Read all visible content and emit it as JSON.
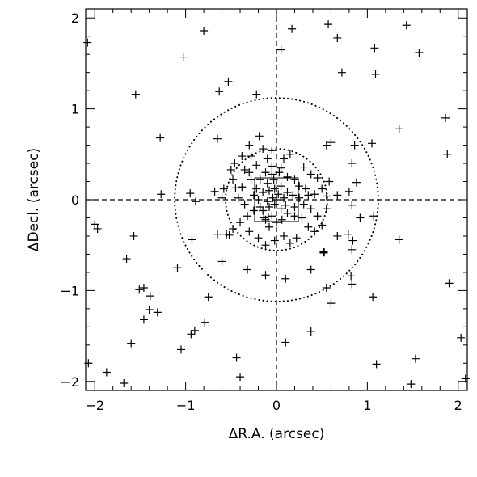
{
  "chart_data": {
    "type": "scatter",
    "title": "",
    "xlabel": "ΔR.A. (arcsec)",
    "ylabel": "ΔDecl. (arcsec)",
    "xlim": [
      -2.1,
      2.1
    ],
    "ylim": [
      -2.1,
      2.1
    ],
    "x_ticks": [
      -2,
      -1,
      0,
      1,
      2
    ],
    "y_ticks": [
      -2,
      -1,
      0,
      1,
      2
    ],
    "x_tick_labels": [
      "−2",
      "−1",
      "0",
      "1",
      "2"
    ],
    "y_tick_labels": [
      "−2",
      "−1",
      "0",
      "1",
      "2"
    ],
    "grid": false,
    "marker": "plus",
    "reference_lines": {
      "x": 0,
      "y": 0,
      "style": "dashed"
    },
    "circles": [
      {
        "center": [
          0,
          0
        ],
        "radius": 1.12,
        "style": "dotted"
      },
      {
        "center": [
          0,
          0
        ],
        "radius": 0.56,
        "style": "dotted"
      }
    ],
    "box": {
      "x": [
        -0.24,
        0.24
      ],
      "y": [
        -0.24,
        0.24
      ]
    },
    "highlight_point": [
      0.52,
      -0.58
    ],
    "colors": {
      "ink": "#000000",
      "background": "#ffffff"
    },
    "points": [
      [
        -2.08,
        1.73
      ],
      [
        -0.8,
        1.86
      ],
      [
        -1.02,
        1.57
      ],
      [
        0.05,
        1.65
      ],
      [
        0.17,
        1.88
      ],
      [
        0.57,
        1.93
      ],
      [
        0.67,
        1.78
      ],
      [
        1.08,
        1.67
      ],
      [
        1.43,
        1.92
      ],
      [
        1.57,
        1.62
      ],
      [
        0.72,
        1.4
      ],
      [
        1.09,
        1.38
      ],
      [
        -0.53,
        1.3
      ],
      [
        -0.63,
        1.19
      ],
      [
        -1.55,
        1.16
      ],
      [
        -0.22,
        1.16
      ],
      [
        1.86,
        0.9
      ],
      [
        1.35,
        0.78
      ],
      [
        1.88,
        0.5
      ],
      [
        1.05,
        0.62
      ],
      [
        0.83,
        0.4
      ],
      [
        0.86,
        0.6
      ],
      [
        -1.28,
        0.68
      ],
      [
        -0.65,
        0.67
      ],
      [
        -0.19,
        0.7
      ],
      [
        -0.3,
        0.6
      ],
      [
        0.55,
        0.6
      ],
      [
        0.6,
        0.63
      ],
      [
        -1.27,
        0.06
      ],
      [
        -0.95,
        0.07
      ],
      [
        -0.6,
        0.02
      ],
      [
        -0.68,
        0.09
      ],
      [
        -0.89,
        -0.02
      ],
      [
        0.55,
        0.04
      ],
      [
        0.67,
        0.05
      ],
      [
        0.8,
        0.09
      ],
      [
        0.83,
        -0.06
      ],
      [
        0.88,
        0.19
      ],
      [
        1.07,
        -0.18
      ],
      [
        0.92,
        -0.2
      ],
      [
        -2.0,
        -0.27
      ],
      [
        -1.97,
        -0.32
      ],
      [
        -1.57,
        -0.4
      ],
      [
        -0.93,
        -0.44
      ],
      [
        -0.65,
        -0.38
      ],
      [
        -0.52,
        -0.39
      ],
      [
        0.67,
        -0.4
      ],
      [
        0.79,
        -0.38
      ],
      [
        0.84,
        -0.45
      ],
      [
        0.83,
        -0.55
      ],
      [
        1.35,
        -0.44
      ],
      [
        -1.09,
        -0.75
      ],
      [
        -0.6,
        -0.68
      ],
      [
        -0.32,
        -0.77
      ],
      [
        -0.12,
        -0.83
      ],
      [
        0.38,
        -0.77
      ],
      [
        0.1,
        -0.87
      ],
      [
        0.82,
        -0.84
      ],
      [
        0.83,
        -0.93
      ],
      [
        0.52,
        -0.58
      ],
      [
        -1.65,
        -0.65
      ],
      [
        -1.51,
        -0.99
      ],
      [
        -1.46,
        -0.97
      ],
      [
        -1.39,
        -1.06
      ],
      [
        -1.31,
        -1.24
      ],
      [
        -1.4,
        -1.21
      ],
      [
        -1.46,
        -1.32
      ],
      [
        -0.75,
        -1.07
      ],
      [
        0.55,
        -0.97
      ],
      [
        0.6,
        -1.14
      ],
      [
        1.06,
        -1.07
      ],
      [
        1.9,
        -0.92
      ],
      [
        -1.05,
        -1.65
      ],
      [
        -0.94,
        -1.48
      ],
      [
        -0.9,
        -1.44
      ],
      [
        -0.79,
        -1.35
      ],
      [
        -0.44,
        -1.74
      ],
      [
        -0.4,
        -1.95
      ],
      [
        0.1,
        -1.57
      ],
      [
        0.38,
        -1.45
      ],
      [
        1.1,
        -1.81
      ],
      [
        1.53,
        -1.75
      ],
      [
        -2.07,
        -1.8
      ],
      [
        -1.87,
        -1.9
      ],
      [
        -1.68,
        -2.02
      ],
      [
        -1.6,
        -1.58
      ],
      [
        1.48,
        -2.03
      ],
      [
        2.03,
        -1.52
      ],
      [
        2.08,
        -1.97
      ],
      [
        -0.15,
        0.56
      ],
      [
        -0.05,
        0.54
      ],
      [
        -0.38,
        0.48
      ],
      [
        -0.46,
        0.4
      ],
      [
        -0.35,
        0.33
      ],
      [
        -0.28,
        0.22
      ],
      [
        -0.38,
        0.14
      ],
      [
        -0.48,
        0.22
      ],
      [
        -0.5,
        0.33
      ],
      [
        -0.45,
        0.13
      ],
      [
        -0.3,
        0.3
      ],
      [
        -0.28,
        0.48
      ],
      [
        -0.22,
        0.38
      ],
      [
        -0.12,
        0.3
      ],
      [
        -0.05,
        0.37
      ],
      [
        0.05,
        0.35
      ],
      [
        0.2,
        0.22
      ],
      [
        0.3,
        0.36
      ],
      [
        0.38,
        0.28
      ],
      [
        0.45,
        0.24
      ],
      [
        0.5,
        0.12
      ],
      [
        0.42,
        0.06
      ],
      [
        0.32,
        0.12
      ],
      [
        -0.1,
        0.45
      ],
      [
        0.08,
        0.45
      ],
      [
        0.15,
        0.5
      ],
      [
        0.12,
        0.25
      ],
      [
        -0.03,
        0.22
      ],
      [
        -0.1,
        0.18
      ],
      [
        -0.18,
        0.22
      ],
      [
        -0.22,
        0.12
      ],
      [
        -0.15,
        0.08
      ],
      [
        -0.08,
        0.1
      ],
      [
        -0.02,
        0.12
      ],
      [
        0.05,
        0.15
      ],
      [
        0.12,
        0.08
      ],
      [
        0.18,
        0.05
      ],
      [
        0.25,
        0.02
      ],
      [
        0.3,
        -0.05
      ],
      [
        0.38,
        -0.1
      ],
      [
        0.45,
        -0.18
      ],
      [
        0.5,
        -0.28
      ],
      [
        0.42,
        -0.35
      ],
      [
        0.35,
        -0.3
      ],
      [
        0.28,
        -0.2
      ],
      [
        0.2,
        -0.18
      ],
      [
        0.12,
        -0.15
      ],
      [
        0.05,
        -0.1
      ],
      [
        -0.02,
        -0.05
      ],
      [
        -0.1,
        -0.02
      ],
      [
        -0.18,
        -0.08
      ],
      [
        -0.25,
        -0.12
      ],
      [
        -0.32,
        -0.18
      ],
      [
        -0.4,
        -0.25
      ],
      [
        -0.48,
        -0.32
      ],
      [
        -0.55,
        -0.38
      ],
      [
        -0.3,
        -0.35
      ],
      [
        -0.2,
        -0.42
      ],
      [
        -0.12,
        -0.5
      ],
      [
        -0.02,
        -0.45
      ],
      [
        0.08,
        -0.4
      ],
      [
        0.15,
        -0.48
      ],
      [
        0.22,
        -0.42
      ],
      [
        -0.08,
        -0.3
      ],
      [
        0.0,
        -0.25
      ],
      [
        0.06,
        -0.22
      ],
      [
        -0.05,
        -0.18
      ],
      [
        -0.12,
        -0.22
      ],
      [
        -0.15,
        -0.12
      ],
      [
        -0.08,
        -0.08
      ],
      [
        0.0,
        0.0
      ],
      [
        0.08,
        0.02
      ],
      [
        0.02,
        0.06
      ],
      [
        -0.04,
        0.02
      ],
      [
        0.1,
        -0.06
      ],
      [
        -0.2,
        0.0
      ],
      [
        0.2,
        -0.08
      ],
      [
        -0.35,
        -0.05
      ],
      [
        0.35,
        0.05
      ],
      [
        -0.42,
        0.02
      ],
      [
        -0.58,
        0.12
      ],
      [
        0.55,
        -0.1
      ],
      [
        0.58,
        0.2
      ],
      [
        -0.25,
        0.05
      ],
      [
        0.25,
        0.15
      ],
      [
        -0.14,
        -0.2
      ],
      [
        -0.09,
        -0.19
      ],
      [
        -0.05,
        0.28
      ],
      [
        0.03,
        0.3
      ]
    ]
  }
}
